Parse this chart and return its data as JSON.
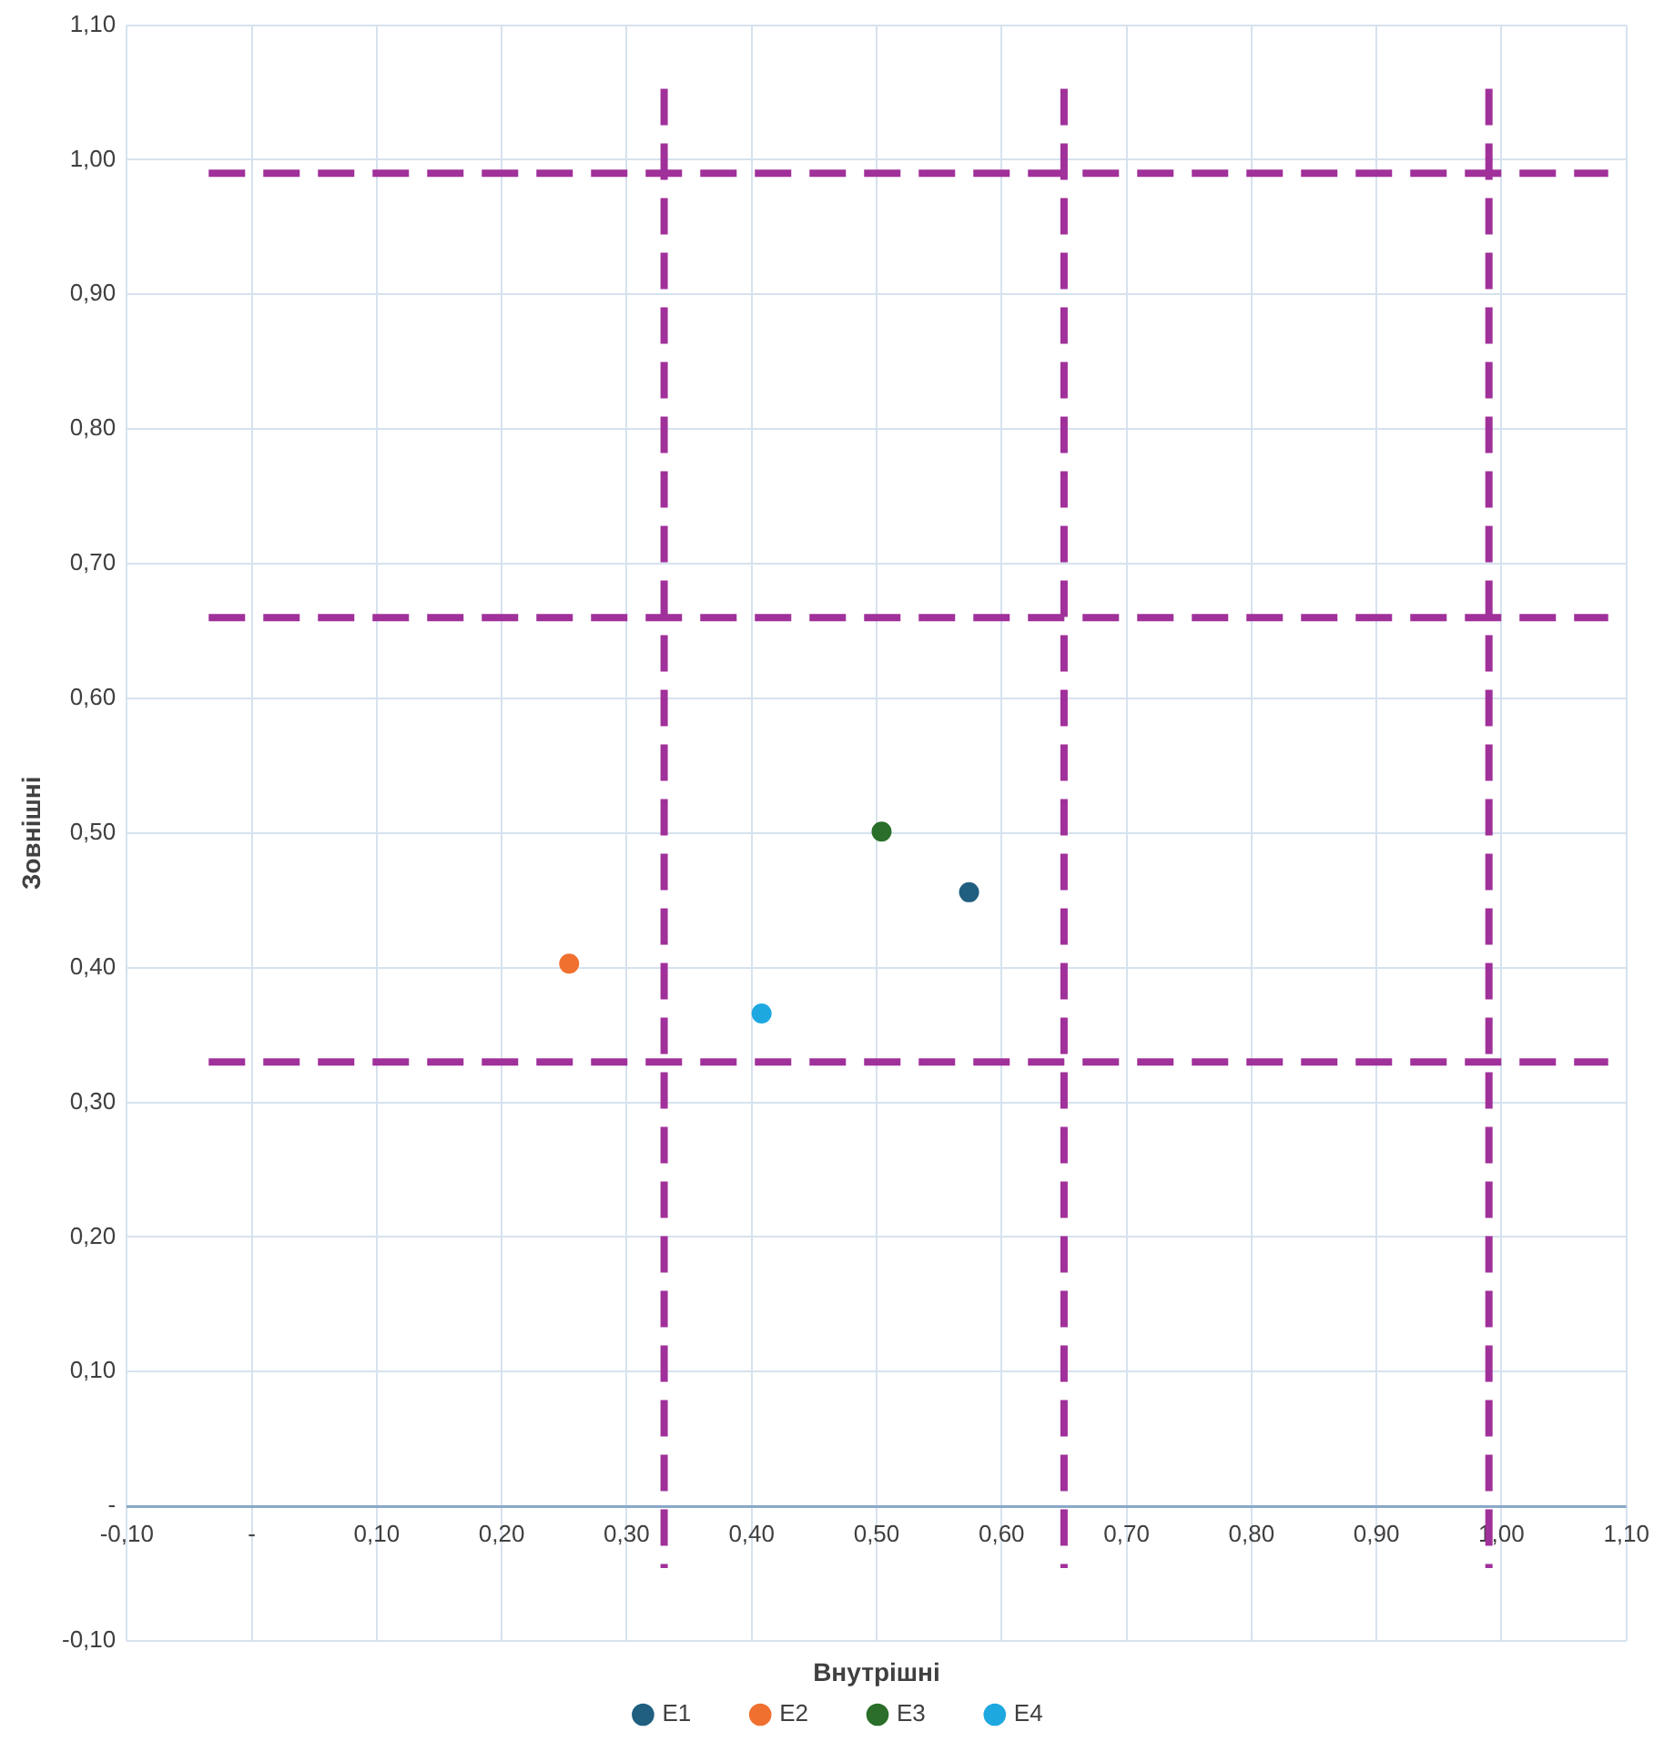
{
  "chart_data": {
    "type": "scatter",
    "xlabel": "Внутрішні",
    "ylabel": "Зовнішні",
    "xlim": [
      -0.1,
      1.1
    ],
    "ylim": [
      -0.1,
      1.1
    ],
    "xticks": [
      {
        "value": -0.1,
        "label": "-0,10"
      },
      {
        "value": 0,
        "label": "-"
      },
      {
        "value": 0.1,
        "label": "0,10"
      },
      {
        "value": 0.2,
        "label": "0,20"
      },
      {
        "value": 0.3,
        "label": "0,30"
      },
      {
        "value": 0.4,
        "label": "0,40"
      },
      {
        "value": 0.5,
        "label": "0,50"
      },
      {
        "value": 0.6,
        "label": "0,60"
      },
      {
        "value": 0.7,
        "label": "0,70"
      },
      {
        "value": 0.8,
        "label": "0,80"
      },
      {
        "value": 0.9,
        "label": "0,90"
      },
      {
        "value": 1.0,
        "label": "1,00"
      },
      {
        "value": 1.1,
        "label": "1,10"
      }
    ],
    "yticks": [
      {
        "value": -0.1,
        "label": "-0,10"
      },
      {
        "value": 0,
        "label": "-"
      },
      {
        "value": 0.1,
        "label": "0,10"
      },
      {
        "value": 0.2,
        "label": "0,20"
      },
      {
        "value": 0.3,
        "label": "0,30"
      },
      {
        "value": 0.4,
        "label": "0,40"
      },
      {
        "value": 0.5,
        "label": "0,50"
      },
      {
        "value": 0.6,
        "label": "0,60"
      },
      {
        "value": 0.7,
        "label": "0,70"
      },
      {
        "value": 0.8,
        "label": "0,80"
      },
      {
        "value": 0.9,
        "label": "0,90"
      },
      {
        "value": 1.0,
        "label": "1,00"
      },
      {
        "value": 1.1,
        "label": "1,10"
      }
    ],
    "series": [
      {
        "name": "E1",
        "color": "#205f80",
        "x": [
          0.574
        ],
        "values": [
          0.456
        ]
      },
      {
        "name": "E2",
        "color": "#f07030",
        "x": [
          0.254
        ],
        "values": [
          0.403
        ]
      },
      {
        "name": "E3",
        "color": "#2a6e2a",
        "x": [
          0.504
        ],
        "values": [
          0.501
        ]
      },
      {
        "name": "E4",
        "color": "#1ea8e0",
        "x": [
          0.408
        ],
        "values": [
          0.366
        ]
      }
    ],
    "ref_lines": [
      {
        "axis": "x",
        "value": 0.33,
        "color": "#a0309a",
        "line_style": "dashed"
      },
      {
        "axis": "x",
        "value": 0.65,
        "color": "#a0309a",
        "line_style": "dashed"
      },
      {
        "axis": "x",
        "value": 0.99,
        "color": "#a0309a",
        "line_style": "dashed"
      },
      {
        "axis": "y",
        "value": 0.99,
        "color": "#a0309a",
        "line_style": "dashed"
      },
      {
        "axis": "y",
        "value": 0.66,
        "color": "#a0309a",
        "line_style": "dashed"
      },
      {
        "axis": "y",
        "value": 0.33,
        "color": "#a0309a",
        "line_style": "dashed"
      }
    ],
    "grid": true,
    "legend": "bottom",
    "marker": "circle"
  }
}
